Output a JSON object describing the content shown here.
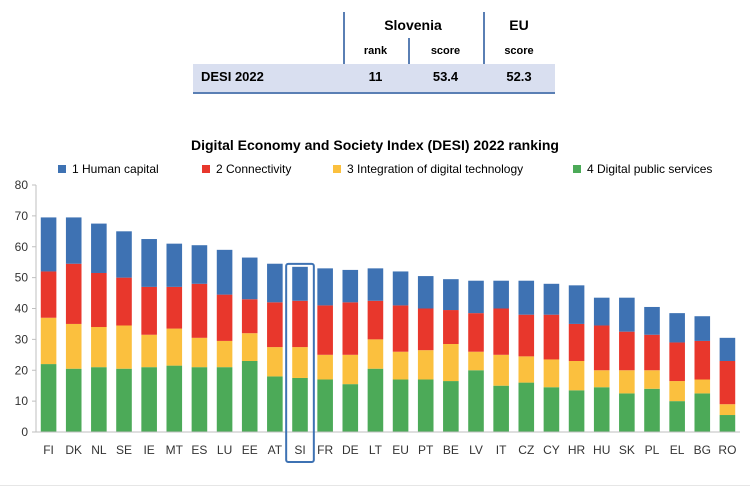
{
  "summary_table": {
    "country_header": "Slovenia",
    "eu_header": "EU",
    "col_rank": "rank",
    "col_score_si": "score",
    "col_score_eu": "score",
    "row_label": "DESI 2022",
    "rank": "11",
    "score_si": "53.4",
    "score_eu": "52.3"
  },
  "colors": {
    "human_capital": "#3e72b3",
    "connectivity": "#e8372c",
    "integration": "#fbc03e",
    "public_services": "#4caa58",
    "highlight_box": "#3e72b3",
    "table_band": "#d9dff0"
  },
  "chart_data": {
    "type": "bar",
    "stacked": true,
    "title": "Digital Economy and Society Index (DESI) 2022 ranking",
    "categories": [
      "FI",
      "DK",
      "NL",
      "SE",
      "IE",
      "MT",
      "ES",
      "LU",
      "EE",
      "AT",
      "SI",
      "FR",
      "DE",
      "LT",
      "EU",
      "PT",
      "BE",
      "LV",
      "IT",
      "CZ",
      "CY",
      "HR",
      "HU",
      "SK",
      "PL",
      "EL",
      "BG",
      "RO"
    ],
    "highlight": "SI",
    "series": [
      {
        "name": "4 Digital public services",
        "values": [
          22.0,
          20.5,
          21.0,
          20.5,
          21.0,
          21.5,
          21.0,
          21.0,
          23.0,
          18.0,
          17.5,
          17.0,
          15.5,
          20.5,
          17.0,
          17.0,
          16.5,
          20.0,
          15.0,
          16.0,
          14.5,
          13.5,
          14.5,
          12.5,
          14.0,
          10.0,
          12.5,
          5.5
        ]
      },
      {
        "name": "3 Integration of digital technology",
        "values": [
          15.0,
          14.5,
          13.0,
          14.0,
          10.5,
          12.0,
          9.5,
          8.5,
          9.0,
          9.5,
          10.0,
          8.0,
          9.5,
          9.5,
          9.0,
          9.5,
          12.0,
          6.0,
          10.0,
          8.5,
          9.0,
          9.5,
          5.5,
          7.5,
          6.0,
          6.5,
          4.5,
          3.5
        ]
      },
      {
        "name": "2 Connectivity",
        "values": [
          15.0,
          19.5,
          17.5,
          15.5,
          15.5,
          13.5,
          17.5,
          15.0,
          11.0,
          14.5,
          15.0,
          16.0,
          17.0,
          12.5,
          15.0,
          13.5,
          11.0,
          12.5,
          15.0,
          13.5,
          14.5,
          12.0,
          14.5,
          12.5,
          11.5,
          12.5,
          12.5,
          14.0
        ]
      },
      {
        "name": "1 Human capital",
        "values": [
          17.5,
          15.0,
          16.0,
          15.0,
          15.5,
          14.0,
          12.5,
          14.5,
          13.5,
          12.5,
          11.0,
          12.0,
          10.5,
          10.5,
          11.0,
          10.5,
          10.0,
          10.5,
          9.0,
          11.0,
          10.0,
          12.5,
          9.0,
          11.0,
          9.0,
          9.5,
          8.0,
          7.5
        ]
      }
    ],
    "ylim": [
      0,
      80
    ],
    "yticks": [
      "0",
      "10",
      "20",
      "30",
      "40",
      "50",
      "60",
      "70",
      "80"
    ],
    "grid": false,
    "legend_position": "top"
  }
}
